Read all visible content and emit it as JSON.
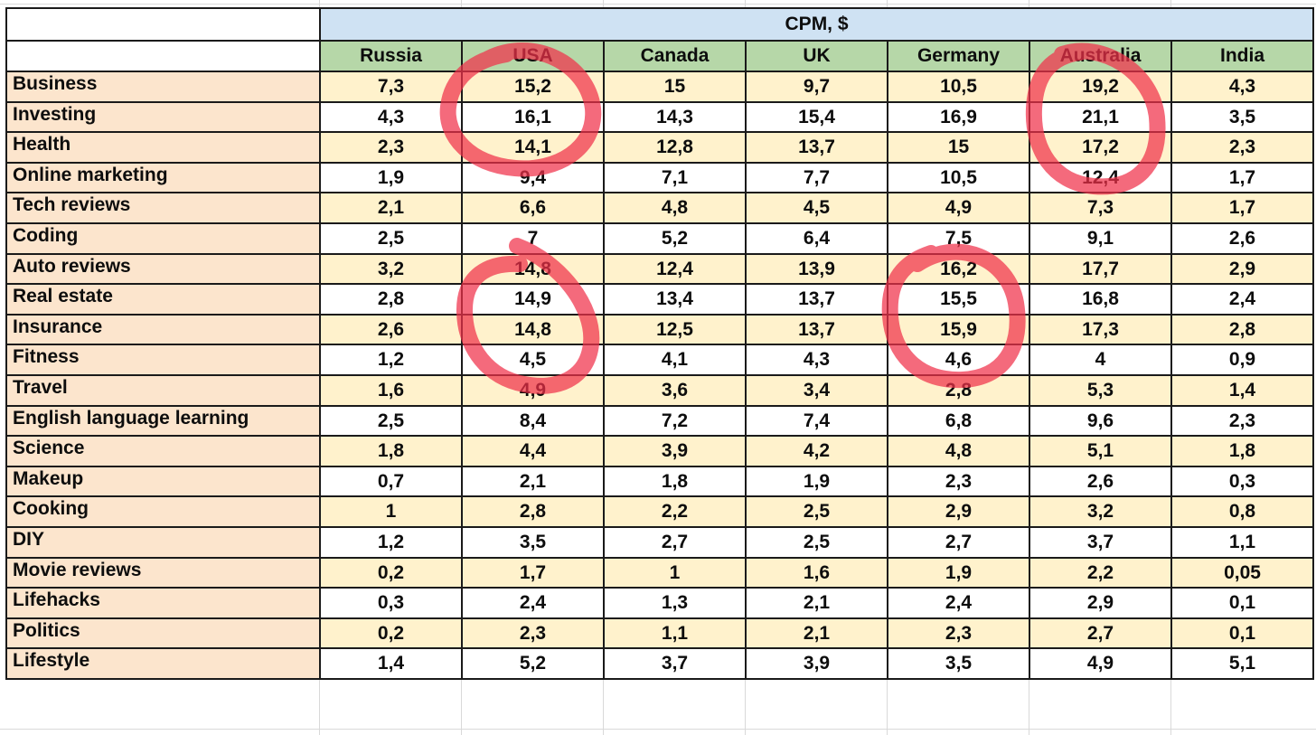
{
  "sheet": {
    "header_title": "CPM, $",
    "columns": [
      "Russia",
      "USA",
      "Canada",
      "UK",
      "Germany",
      "Australia",
      "India"
    ],
    "rows": [
      {
        "label": "Business",
        "values": [
          "7,3",
          "15,2",
          "15",
          "9,7",
          "10,5",
          "19,2",
          "4,3"
        ]
      },
      {
        "label": "Investing",
        "values": [
          "4,3",
          "16,1",
          "14,3",
          "15,4",
          "16,9",
          "21,1",
          "3,5"
        ]
      },
      {
        "label": "Health",
        "values": [
          "2,3",
          "14,1",
          "12,8",
          "13,7",
          "15",
          "17,2",
          "2,3"
        ]
      },
      {
        "label": "Online marketing",
        "values": [
          "1,9",
          "9,4",
          "7,1",
          "7,7",
          "10,5",
          "12,4",
          "1,7"
        ]
      },
      {
        "label": "Tech reviews",
        "values": [
          "2,1",
          "6,6",
          "4,8",
          "4,5",
          "4,9",
          "7,3",
          "1,7"
        ]
      },
      {
        "label": "Coding",
        "values": [
          "2,5",
          "7",
          "5,2",
          "6,4",
          "7,5",
          "9,1",
          "2,6"
        ]
      },
      {
        "label": "Auto reviews",
        "values": [
          "3,2",
          "14,8",
          "12,4",
          "13,9",
          "16,2",
          "17,7",
          "2,9"
        ]
      },
      {
        "label": "Real estate",
        "values": [
          "2,8",
          "14,9",
          "13,4",
          "13,7",
          "15,5",
          "16,8",
          "2,4"
        ]
      },
      {
        "label": "Insurance",
        "values": [
          "2,6",
          "14,8",
          "12,5",
          "13,7",
          "15,9",
          "17,3",
          "2,8"
        ]
      },
      {
        "label": "Fitness",
        "values": [
          "1,2",
          "4,5",
          "4,1",
          "4,3",
          "4,6",
          "4",
          "0,9"
        ]
      },
      {
        "label": "Travel",
        "values": [
          "1,6",
          "4,9",
          "3,6",
          "3,4",
          "2,8",
          "5,3",
          "1,4"
        ]
      },
      {
        "label": "English language learning",
        "values": [
          "2,5",
          "8,4",
          "7,2",
          "7,4",
          "6,8",
          "9,6",
          "2,3"
        ]
      },
      {
        "label": "Science",
        "values": [
          "1,8",
          "4,4",
          "3,9",
          "4,2",
          "4,8",
          "5,1",
          "1,8"
        ]
      },
      {
        "label": "Makeup",
        "values": [
          "0,7",
          "2,1",
          "1,8",
          "1,9",
          "2,3",
          "2,6",
          "0,3"
        ]
      },
      {
        "label": "Cooking",
        "values": [
          "1",
          "2,8",
          "2,2",
          "2,5",
          "2,9",
          "3,2",
          "0,8"
        ]
      },
      {
        "label": "DIY",
        "values": [
          "1,2",
          "3,5",
          "2,7",
          "2,5",
          "2,7",
          "3,7",
          "1,1"
        ]
      },
      {
        "label": "Movie reviews",
        "values": [
          "0,2",
          "1,7",
          "1",
          "1,6",
          "1,9",
          "2,2",
          "0,05"
        ]
      },
      {
        "label": "Lifehacks",
        "values": [
          "0,3",
          "2,4",
          "1,3",
          "2,1",
          "2,4",
          "2,9",
          "0,1"
        ]
      },
      {
        "label": "Politics",
        "values": [
          "0,2",
          "2,3",
          "1,1",
          "2,1",
          "2,3",
          "2,7",
          "0,1"
        ]
      },
      {
        "label": "Lifestyle",
        "values": [
          "1,4",
          "5,2",
          "3,7",
          "3,9",
          "3,5",
          "4,9",
          "5,1"
        ]
      }
    ]
  },
  "colors": {
    "header_title_bg": "#cfe2f3",
    "country_header_bg": "#b6d7a8",
    "row_label_bg": "#fce5cd",
    "odd_row_bg": "#fff2cc",
    "even_row_bg": "#ffffff",
    "marker_red": "#f0304a"
  }
}
